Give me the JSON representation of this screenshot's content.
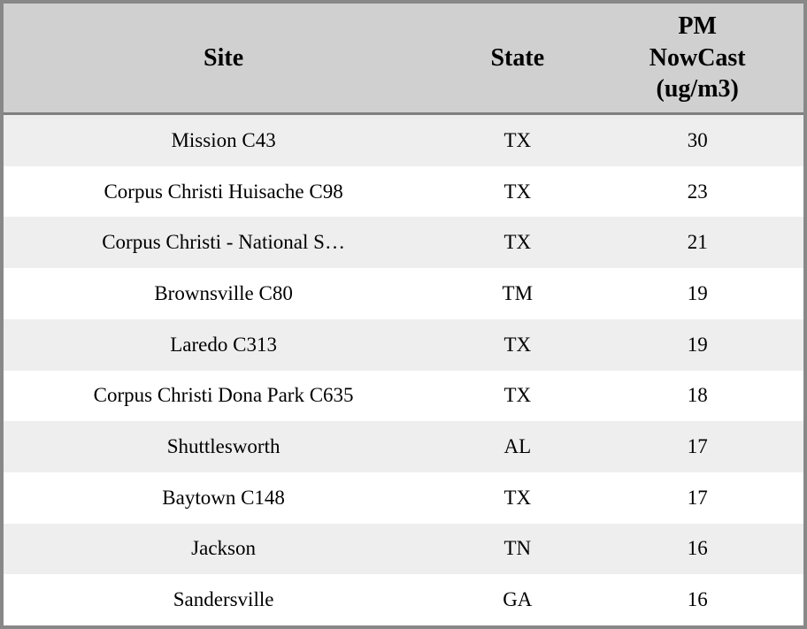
{
  "table": {
    "columns": [
      {
        "key": "site",
        "label": "Site"
      },
      {
        "key": "state",
        "label": "State"
      },
      {
        "key": "pm",
        "label": "PM\nNowCast\n(ug/m3)"
      }
    ],
    "rows": [
      {
        "site": "Mission C43",
        "state": "TX",
        "pm": "30"
      },
      {
        "site": "Corpus Christi Huisache C98",
        "state": "TX",
        "pm": "23"
      },
      {
        "site": "Corpus Christi - National S…",
        "state": "TX",
        "pm": "21"
      },
      {
        "site": "Brownsville C80",
        "state": "TM",
        "pm": "19"
      },
      {
        "site": "Laredo C313",
        "state": "TX",
        "pm": "19"
      },
      {
        "site": "Corpus Christi Dona Park C635",
        "state": "TX",
        "pm": "18"
      },
      {
        "site": "Shuttlesworth",
        "state": "AL",
        "pm": "17"
      },
      {
        "site": "Baytown C148",
        "state": "TX",
        "pm": "17"
      },
      {
        "site": "Jackson",
        "state": "TN",
        "pm": "16"
      },
      {
        "site": "Sandersville",
        "state": "GA",
        "pm": "16"
      }
    ]
  },
  "colors": {
    "frame_border": "#888888",
    "header_bg": "#d0d0d0",
    "header_divider": "#808080",
    "row_alt_bg": "#eeeeee",
    "row_bg": "#ffffff",
    "text": "#000000"
  },
  "chart_data": {
    "type": "table",
    "columns": [
      "Site",
      "State",
      "PM NowCast (ug/m3)"
    ],
    "rows": [
      [
        "Mission C43",
        "TX",
        30
      ],
      [
        "Corpus Christi Huisache C98",
        "TX",
        23
      ],
      [
        "Corpus Christi - National S…",
        "TX",
        21
      ],
      [
        "Brownsville C80",
        "TM",
        19
      ],
      [
        "Laredo C313",
        "TX",
        19
      ],
      [
        "Corpus Christi Dona Park C635",
        "TX",
        18
      ],
      [
        "Shuttlesworth",
        "AL",
        17
      ],
      [
        "Baytown C148",
        "TX",
        17
      ],
      [
        "Jackson",
        "TN",
        16
      ],
      [
        "Sandersville",
        "GA",
        16
      ]
    ],
    "layout": {
      "header_background": "#d0d0d0",
      "alternating_row_colors": [
        "#eeeeee",
        "#ffffff"
      ],
      "grid": "off",
      "value_column_unit": "ug/m3"
    }
  }
}
